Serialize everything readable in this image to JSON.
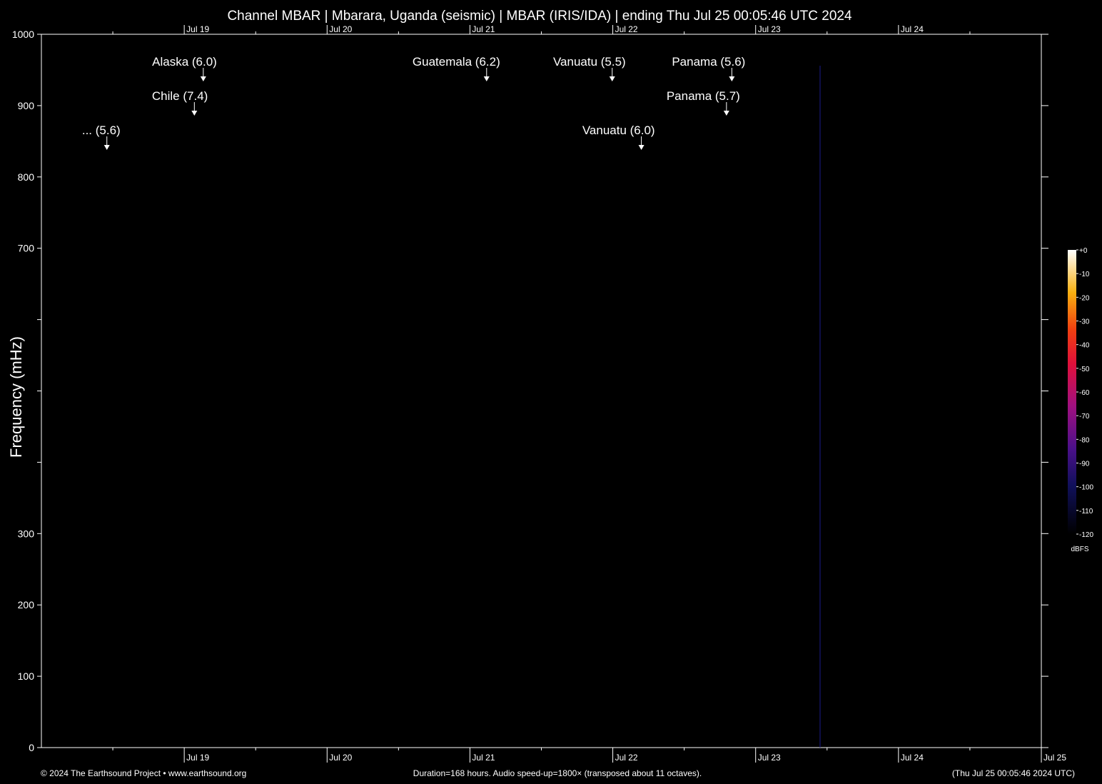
{
  "chart_data": {
    "type": "spectrogram",
    "title": "Channel MBAR | Mbarara, Uganda (seismic) | MBAR (IRIS/IDA) | ending Thu Jul 25 00:05:46 UTC 2024",
    "y_label": "Frequency (mHz)",
    "xlim": [
      0,
      168
    ],
    "xticks": [
      {
        "value": 24,
        "label": "Jul 19"
      },
      {
        "value": 48,
        "label": "Jul 20"
      },
      {
        "value": 72,
        "label": "Jul 21"
      },
      {
        "value": 96,
        "label": "Jul 22"
      },
      {
        "value": 120,
        "label": "Jul 23"
      },
      {
        "value": 144,
        "label": "Jul 24"
      },
      {
        "value": 168,
        "label": "Jul 25"
      }
    ],
    "xminor": [
      12,
      36,
      60,
      84,
      108,
      132,
      156
    ],
    "ylim": [
      0,
      1000
    ],
    "yticks": [
      0,
      100,
      200,
      300,
      700,
      800,
      900,
      1000
    ],
    "yminor": [
      400,
      500,
      600
    ],
    "events": [
      {
        "label": "... (5.6)",
        "x": 11
      },
      {
        "label": "Chile (7.4)",
        "x": 25.7
      },
      {
        "label": "Alaska (6.0)",
        "x": 27.2
      },
      {
        "label": "Guatemala (6.2)",
        "x": 74.8
      },
      {
        "label": "Vanuatu (5.5)",
        "x": 95.9
      },
      {
        "label": "Vanuatu (6.0)",
        "x": 100.8
      },
      {
        "label": "Panama (5.7)",
        "x": 115.1
      },
      {
        "label": "Panama (5.6)",
        "x": 116.0
      }
    ],
    "colorbar": {
      "label": "dBFS",
      "lim": [
        -120,
        0
      ],
      "ticks": [
        {
          "value": 0,
          "label": "+0"
        },
        -10,
        -20,
        -30,
        -40,
        -50,
        -60,
        -70,
        -80,
        -90,
        -100,
        -110,
        -120
      ]
    },
    "footer_left": "© 2024 The Earthsound Project • www.earthsound.org",
    "footer_center": "Duration=168 hours. Audio speed-up=1800× (transposed about 11 octaves).",
    "footer_right": "(Thu Jul 25 00:05:46 2024 UTC)"
  }
}
